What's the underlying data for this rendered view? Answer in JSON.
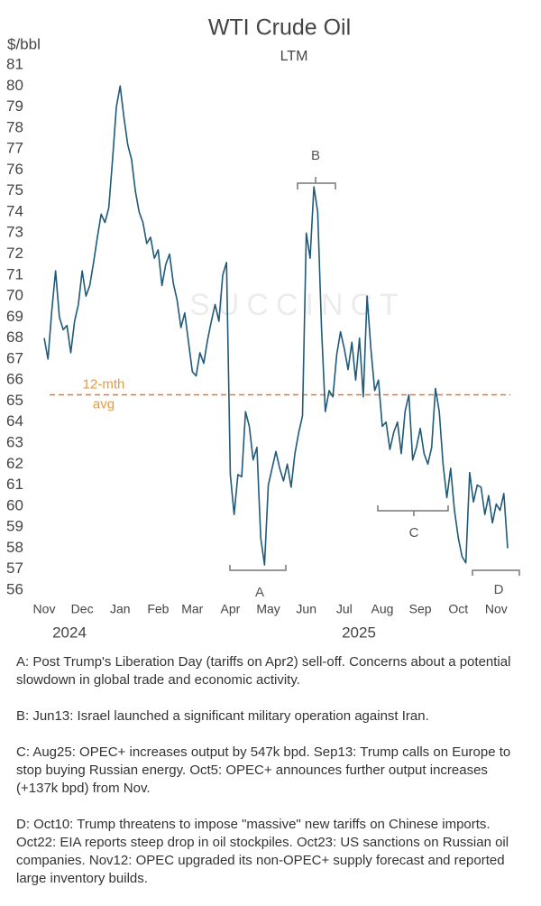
{
  "chart_data": {
    "type": "line",
    "title": "WTI Crude Oil",
    "subtitle": "LTM",
    "y_unit": "$/bbl",
    "watermark": "SUCCINCT",
    "series": [
      {
        "name": "WTI",
        "color": "#1f5a78",
        "values": [
          68.0,
          67.0,
          69.3,
          71.2,
          69.0,
          68.4,
          68.6,
          67.3,
          68.8,
          69.6,
          71.2,
          70.0,
          70.5,
          71.6,
          72.8,
          73.9,
          73.5,
          74.2,
          76.5,
          79.0,
          80.0,
          78.5,
          77.2,
          76.5,
          75.0,
          74.0,
          73.5,
          72.5,
          72.8,
          71.8,
          72.2,
          70.5,
          71.5,
          72.0,
          70.6,
          69.8,
          68.5,
          69.2,
          67.8,
          66.4,
          66.2,
          67.3,
          66.8,
          67.9,
          68.8,
          69.6,
          68.8,
          71.0,
          71.6,
          61.5,
          59.6,
          61.5,
          61.4,
          64.5,
          63.8,
          62.2,
          62.8,
          58.5,
          57.2,
          61.0,
          61.8,
          62.6,
          61.8,
          61.2,
          62.0,
          60.9,
          62.5,
          63.5,
          64.3,
          73.0,
          71.8,
          75.2,
          74.0,
          68.5,
          64.5,
          65.5,
          65.2,
          67.2,
          68.3,
          67.5,
          66.5,
          67.8,
          66.0,
          68.0,
          65.2,
          70.0,
          67.5,
          65.5,
          66.0,
          63.8,
          64.0,
          62.7,
          63.5,
          64.0,
          62.5,
          64.5,
          65.3,
          62.2,
          62.8,
          63.7,
          62.5,
          62.0,
          62.8,
          65.6,
          64.5,
          62.0,
          60.4,
          61.8,
          59.8,
          58.5,
          57.6,
          57.3,
          61.6,
          60.2,
          61.0,
          60.9,
          59.6,
          60.5,
          59.2,
          60.1,
          59.8,
          60.6,
          58.0
        ]
      }
    ],
    "average": {
      "lines": [
        "12-mth",
        "avg"
      ],
      "value": 65.3,
      "color": "#e8743b"
    },
    "xlim": [
      0,
      122
    ],
    "xticks": [
      {
        "value": 0,
        "label": "Nov"
      },
      {
        "value": 10,
        "label": "Dec"
      },
      {
        "value": 20,
        "label": "Jan"
      },
      {
        "value": 30,
        "label": "Feb"
      },
      {
        "value": 39,
        "label": "Mar"
      },
      {
        "value": 49,
        "label": "Apr"
      },
      {
        "value": 59,
        "label": "May"
      },
      {
        "value": 69,
        "label": "Jun"
      },
      {
        "value": 79,
        "label": "Jul"
      },
      {
        "value": 89,
        "label": "Aug"
      },
      {
        "value": 99,
        "label": "Sep"
      },
      {
        "value": 109,
        "label": "Oct"
      },
      {
        "value": 119,
        "label": "Nov"
      }
    ],
    "years": [
      "2024",
      "2025"
    ],
    "ylim": [
      56,
      81
    ],
    "yticks": [
      56,
      57,
      58,
      59,
      60,
      61,
      62,
      63,
      64,
      65,
      66,
      67,
      68,
      69,
      70,
      71,
      72,
      73,
      74,
      75,
      76,
      77,
      78,
      79,
      80,
      81
    ],
    "annotations": [
      "A",
      "B",
      "C",
      "D"
    ],
    "notes": [
      "A: Post Trump's Liberation Day (tariffs on Apr2) sell-off. Concerns about a potential slowdown in global trade and economic activity.",
      "B: Jun13: Israel launched a significant military operation against Iran.",
      "C: Aug25: OPEC+ increases output by 547k bpd. Sep13: Trump calls on Europe to stop buying Russian energy. Oct5: OPEC+ announces further output increases (+137k bpd) from Nov.",
      "D: Oct10: Trump threatens to impose \"massive\" new tariffs on Chinese imports. Oct22: EIA reports steep drop in oil stockpiles. Oct23: US sanctions on Russian oil companies. Nov12: OPEC upgraded its non-OPEC+ supply forecast and reported large inventory builds."
    ]
  }
}
